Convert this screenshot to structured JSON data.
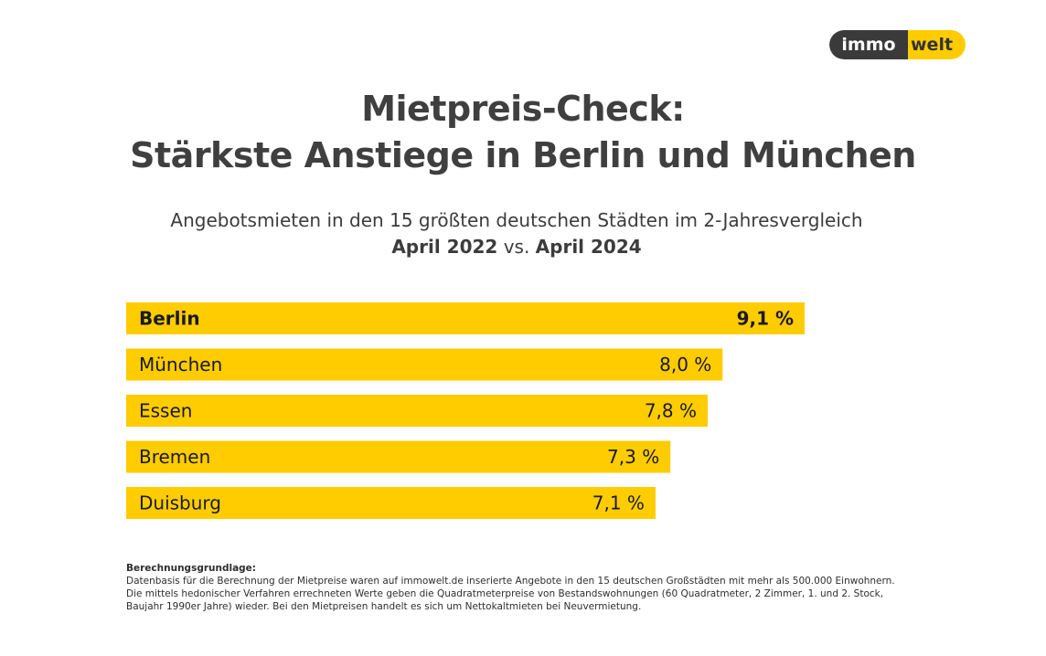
{
  "logo": {
    "left": "immo",
    "right": "welt"
  },
  "header": {
    "title_line1": "Mietpreis-Check:",
    "title_line2": "Stärkste Anstiege in Berlin und München",
    "subtitle_line1": "Angebotsmieten in den 15 größten deutschen Städten im 2-Jahresvergleich",
    "subtitle_from": "April 2022",
    "subtitle_vs": "vs.",
    "subtitle_to": "April 2024"
  },
  "chart_data": {
    "type": "bar",
    "orientation": "horizontal",
    "categories": [
      "Berlin",
      "München",
      "Essen",
      "Bremen",
      "Duisburg"
    ],
    "values": [
      9.1,
      8.0,
      7.8,
      7.3,
      7.1
    ],
    "value_labels": [
      "9,1 %",
      "8,0 %",
      "7,8 %",
      "7,3 %",
      "7,1 %"
    ],
    "highlighted": "Berlin",
    "bar_color": "#ffcc00",
    "grid": false,
    "axes_visible": false
  },
  "footnote": {
    "heading": "Berechnungsgrundlage:",
    "line1": "Datenbasis für die Berechnung der Mietpreise waren auf immowelt.de inserierte Angebote in den 15 deutschen Großstädten mit mehr als 500.000 Einwohnern.",
    "line2": "Die mittels hedonischer Verfahren errechneten Werte geben die Quadratmeterpreise von Bestandswohnungen (60 Quadratmeter, 2 Zimmer, 1. und 2. Stock,",
    "line3": "Baujahr 1990er Jahre) wieder. Bei den Mietpreisen handelt es sich um Nettokaltmieten bei Neuvermietung."
  }
}
